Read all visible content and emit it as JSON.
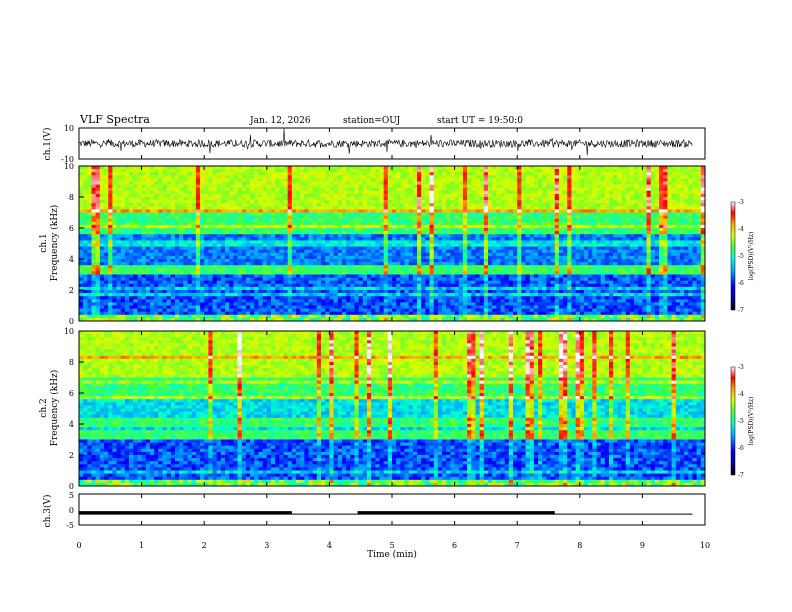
{
  "header": {
    "title": "VLF Spectra",
    "date": "Jan. 12, 2026",
    "station": "station=OUJ",
    "start": "start UT =  19:50:0"
  },
  "chart_data": [
    {
      "type": "line",
      "panel": "ch1-waveform",
      "ylabel": "ch.1(V)",
      "yticks": [
        "10",
        "-10"
      ],
      "ylim": [
        -10,
        10
      ],
      "xlim": [
        0,
        10
      ],
      "description_level": "noisy signal around 0 V, extending to about 9.8 min",
      "x_end": 9.8
    },
    {
      "type": "heatmap",
      "panel": "ch1-spectrogram",
      "ylabel_top": "ch.1",
      "ylabel": "Frequency (kHz)",
      "yticks": [
        "0",
        "2",
        "4",
        "6",
        "8",
        "10"
      ],
      "ylim": [
        0,
        10
      ],
      "xlim": [
        0,
        10
      ],
      "colorbar": {
        "label": "log(PSD)(V²/Hz)",
        "ticks": [
          "-3",
          "-4",
          "-5",
          "-6",
          "-7"
        ],
        "range": [
          -7,
          -3
        ]
      }
    },
    {
      "type": "heatmap",
      "panel": "ch2-spectrogram",
      "ylabel_top": "ch.2",
      "ylabel": "Frequency (kHz)",
      "yticks": [
        "0",
        "2",
        "4",
        "6",
        "8",
        "10"
      ],
      "ylim": [
        0,
        10
      ],
      "xlim": [
        0,
        10
      ],
      "colorbar": {
        "label": "log(PSD)(V²/Hz)",
        "ticks": [
          "-3",
          "-4",
          "-5",
          "-6",
          "-7"
        ],
        "range": [
          -7,
          -3
        ]
      }
    },
    {
      "type": "line",
      "panel": "ch3-level",
      "ylabel": "ch.3(V)",
      "yticks": [
        "5",
        "0",
        "-5"
      ],
      "ylim": [
        -5,
        5
      ],
      "xlim": [
        0,
        10
      ],
      "xlabel": "Time (min)",
      "xticks": [
        "0",
        "1",
        "2",
        "3",
        "4",
        "5",
        "6",
        "7",
        "8",
        "9",
        "10"
      ],
      "baseline_level": -1.5,
      "segments_high": [
        [
          0,
          3.4
        ],
        [
          4.45,
          7.6
        ]
      ]
    }
  ]
}
